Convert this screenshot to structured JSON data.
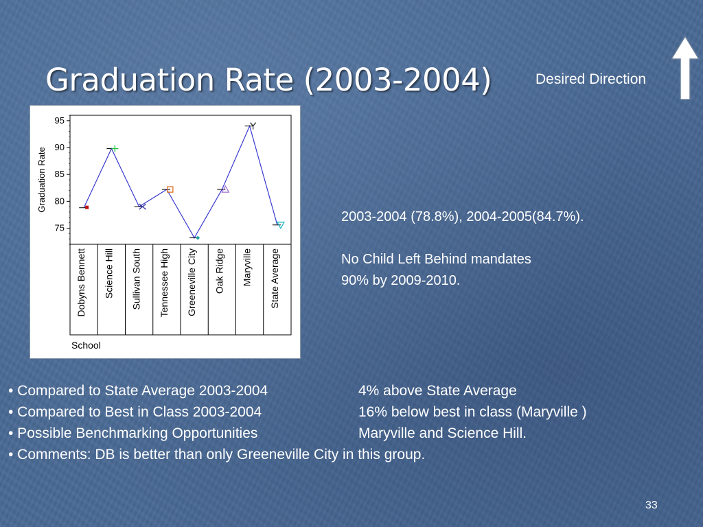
{
  "slide": {
    "title": "Graduation Rate (2003-2004)",
    "desired_direction": "Desired Direction",
    "page_number": "33"
  },
  "summary": {
    "line1": "2003-2004 (78.8%), 2004-2005(84.7%).",
    "line2": "No Child Left Behind mandates",
    "line3": "90% by 2009-2010."
  },
  "bullets": [
    {
      "label": "• Compared to State Average 2003-2004",
      "value": "4% above State Average"
    },
    {
      "label": "• Compared to Best in Class 2003-2004",
      "value": "16% below best in class (Maryville )"
    },
    {
      "label": "• Possible Benchmarking Opportunities",
      "value": "Maryville and Science Hill."
    },
    {
      "label": "• Comments: DB is better than only Greeneville City in this group.",
      "value": ""
    }
  ],
  "chart_data": {
    "type": "line",
    "categories": [
      "Dobyns Bennett",
      "Science Hill",
      "Sullivan South",
      "Tennessee High",
      "Greeneville City",
      "Oak Ridge",
      "Maryville",
      "State Average"
    ],
    "values": [
      78.8,
      89.8,
      79.0,
      82.2,
      73.2,
      82.2,
      94.0,
      75.6
    ],
    "xlabel": "School",
    "ylabel": "Graduation Rate",
    "ylim": [
      72,
      96
    ],
    "yticks": [
      75,
      80,
      85,
      90,
      95
    ],
    "yticks_labels": [
      "75",
      "80",
      "85",
      "90",
      "95"
    ],
    "grid": false,
    "line_color": "#3a3ad0",
    "marker_colors": [
      "#c01010",
      "#20c040",
      "#3030a0",
      "#e07020",
      "#20a0a0",
      "#a070d0",
      "#202020",
      "#20b8c8"
    ],
    "marker_shapes": [
      "square",
      "plus",
      "x",
      "square-open",
      "diamond",
      "triangle",
      "y",
      "triangle-down"
    ]
  }
}
